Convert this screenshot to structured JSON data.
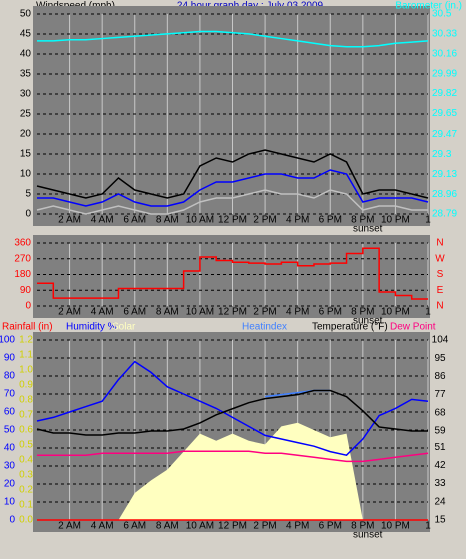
{
  "chart_data": [
    {
      "type": "line",
      "title": "24 hour graph day : July 03 2009",
      "y_label": "Windspeed (mph)",
      "x": [
        0,
        1,
        2,
        3,
        4,
        5,
        6,
        7,
        8,
        9,
        10,
        11,
        12,
        13,
        14,
        15,
        16,
        17,
        18,
        19,
        20,
        21,
        22,
        23,
        24
      ],
      "xlim": [
        0,
        24
      ],
      "xticks": [
        {
          "value": 2,
          "label": "2 AM"
        },
        {
          "value": 4,
          "label": "4 AM"
        },
        {
          "value": 6,
          "label": "6 AM"
        },
        {
          "value": 8,
          "label": "8 AM"
        },
        {
          "value": 10,
          "label": "10 AM"
        },
        {
          "value": 12,
          "label": "12 PM"
        },
        {
          "value": 14,
          "label": "2 PM"
        },
        {
          "value": 16,
          "label": "4 PM"
        },
        {
          "value": 18,
          "label": "6 PM"
        },
        {
          "value": 20,
          "label": "8 PM"
        },
        {
          "value": 22,
          "label": "10 PM"
        },
        {
          "value": 24,
          "label": "1"
        }
      ],
      "annotation": {
        "x": 20.3,
        "label": "sunset"
      },
      "ylim": [
        0,
        50
      ],
      "yticks": [
        0,
        5,
        10,
        15,
        20,
        25,
        30,
        35,
        40,
        45,
        50
      ],
      "y2lim": [
        28.79,
        30.5
      ],
      "y2ticks": [
        28.79,
        28.96,
        29.13,
        29.3,
        29.47,
        29.65,
        29.82,
        29.99,
        30.16,
        30.33,
        30.5
      ],
      "grid": true,
      "series": [
        {
          "color": "#000000",
          "values": [
            7,
            6,
            5,
            4,
            5,
            9,
            6,
            5,
            4,
            5,
            12,
            14,
            13,
            15,
            16,
            15,
            14,
            13,
            15,
            13,
            5,
            6,
            6,
            5,
            4
          ]
        },
        {
          "color": "#c0c0c0",
          "values": [
            1,
            2,
            1,
            0,
            1,
            2,
            1,
            0,
            0,
            1,
            3,
            4,
            4,
            5,
            6,
            5,
            5,
            4,
            6,
            5,
            1,
            2,
            2,
            1,
            1
          ]
        },
        {
          "color": "#0000ff",
          "values": [
            4,
            4,
            3,
            2,
            3,
            5,
            3,
            2,
            2,
            3,
            6,
            8,
            8,
            9,
            10,
            10,
            9,
            9,
            11,
            10,
            3,
            4,
            4,
            4,
            3
          ]
        },
        {
          "name": "Barometer (in.)",
          "color": "#00ffff",
          "axis": "y2",
          "values": [
            30.27,
            30.27,
            30.28,
            30.28,
            30.29,
            30.3,
            30.31,
            30.32,
            30.33,
            30.34,
            30.35,
            30.35,
            30.34,
            30.33,
            30.31,
            30.29,
            30.27,
            30.25,
            30.23,
            30.22,
            30.22,
            30.23,
            30.25,
            30.26,
            30.27
          ]
        }
      ]
    },
    {
      "type": "line",
      "x": [
        0,
        1,
        2,
        3,
        4,
        5,
        6,
        7,
        8,
        9,
        10,
        11,
        12,
        13,
        14,
        15,
        16,
        17,
        18,
        19,
        20,
        21,
        22,
        23,
        24
      ],
      "xlim": [
        0,
        24
      ],
      "xticks": [
        {
          "value": 2,
          "label": "2 AM"
        },
        {
          "value": 4,
          "label": "4 AM"
        },
        {
          "value": 6,
          "label": "6 AM"
        },
        {
          "value": 8,
          "label": "8 AM"
        },
        {
          "value": 10,
          "label": "10 AM"
        },
        {
          "value": 12,
          "label": "12 PM"
        },
        {
          "value": 14,
          "label": "2 PM"
        },
        {
          "value": 16,
          "label": "4 PM"
        },
        {
          "value": 18,
          "label": "6 PM"
        },
        {
          "value": 20,
          "label": "8 PM"
        },
        {
          "value": 22,
          "label": "10 PM"
        },
        {
          "value": 24,
          "label": "1"
        }
      ],
      "annotation": {
        "x": 20.3,
        "label": "sunset"
      },
      "ylim": [
        0,
        360
      ],
      "yticks": [
        0,
        90,
        180,
        270,
        360
      ],
      "y2lim": [
        0,
        360
      ],
      "y2ticks": [
        {
          "value": 0,
          "label": "N"
        },
        {
          "value": 90,
          "label": "E"
        },
        {
          "value": 180,
          "label": "S"
        },
        {
          "value": 270,
          "label": "W"
        },
        {
          "value": 360,
          "label": "N"
        }
      ],
      "grid": true,
      "series": [
        {
          "color": "#ff0000",
          "step": true,
          "values": [
            130,
            45,
            45,
            45,
            45,
            100,
            100,
            100,
            100,
            200,
            280,
            260,
            250,
            245,
            240,
            250,
            230,
            240,
            245,
            300,
            330,
            80,
            60,
            40,
            40
          ]
        }
      ]
    },
    {
      "type": "line",
      "x": [
        0,
        1,
        2,
        3,
        4,
        5,
        6,
        7,
        8,
        9,
        10,
        11,
        12,
        13,
        14,
        15,
        16,
        17,
        18,
        19,
        20,
        21,
        22,
        23,
        24
      ],
      "xlim": [
        0,
        24
      ],
      "xticks": [
        {
          "value": 2,
          "label": "2 AM"
        },
        {
          "value": 4,
          "label": "4 AM"
        },
        {
          "value": 6,
          "label": "6 AM"
        },
        {
          "value": 8,
          "label": "8 AM"
        },
        {
          "value": 10,
          "label": "10 AM"
        },
        {
          "value": 12,
          "label": "12 PM"
        },
        {
          "value": 14,
          "label": "2 PM"
        },
        {
          "value": 16,
          "label": "4 PM"
        },
        {
          "value": 18,
          "label": "6 PM"
        },
        {
          "value": 20,
          "label": "8 PM"
        },
        {
          "value": 22,
          "label": "10 PM"
        },
        {
          "value": 24,
          "label": "1"
        }
      ],
      "annotation": {
        "x": 20.3,
        "label": "sunset"
      },
      "ylim": [
        0,
        100
      ],
      "yticks": [
        0,
        10,
        20,
        30,
        40,
        50,
        60,
        70,
        80,
        90,
        100
      ],
      "y2lim": [
        15,
        104
      ],
      "y2ticks": [
        15,
        24,
        33,
        42,
        51,
        59,
        68,
        77,
        86,
        95,
        104
      ],
      "y3lim": [
        0,
        1.2
      ],
      "y3ticks": [
        {
          "value": 0,
          "label": "0.0"
        },
        0.1,
        0.2,
        0.3,
        0.4,
        0.5,
        0.6,
        0.7,
        0.8,
        0.9,
        {
          "value": 1,
          "label": "1.0"
        },
        1.1,
        1.2
      ],
      "grid": true,
      "series": [
        {
          "name": "Rainfall (in)",
          "color": "#ff0000",
          "axis": "y3",
          "values": [
            0,
            0,
            0,
            0,
            0,
            0,
            0,
            0,
            0,
            0,
            0,
            0,
            0,
            0,
            0,
            0,
            0,
            0,
            0,
            0,
            0,
            0,
            0,
            0,
            0
          ]
        },
        {
          "name": "Humidity %",
          "color": "#0000ff",
          "values": [
            55,
            57,
            60,
            63,
            66,
            78,
            88,
            82,
            74,
            70,
            66,
            62,
            57,
            52,
            47,
            45,
            43,
            41,
            38,
            36,
            45,
            58,
            62,
            67,
            66
          ]
        },
        {
          "name": "Solar",
          "color": "#ffffc0",
          "fill": true,
          "values": [
            0,
            0,
            0,
            0,
            0,
            0,
            15,
            22,
            28,
            38,
            48,
            44,
            48,
            44,
            42,
            52,
            54,
            50,
            46,
            48,
            0,
            0,
            0,
            0,
            0
          ]
        },
        {
          "name": "Heatindex",
          "color": "#4080ff",
          "axis": "y2",
          "values": [
            null,
            null,
            null,
            null,
            null,
            null,
            null,
            null,
            null,
            null,
            null,
            null,
            null,
            null,
            76,
            77,
            78,
            79,
            79,
            null,
            null,
            null,
            null,
            null,
            null
          ]
        },
        {
          "name": "Temperature (°F)",
          "color": "#000000",
          "axis": "y2",
          "values": [
            60,
            58,
            58,
            57,
            57,
            58,
            58,
            59,
            59,
            60,
            63,
            67,
            70,
            73,
            75,
            76,
            77,
            79,
            79,
            76,
            69,
            61,
            60,
            59,
            59
          ]
        },
        {
          "name": "Dew Point",
          "color": "#ff0080",
          "axis": "y2",
          "values": [
            47,
            47,
            47,
            47,
            48,
            48,
            48,
            48,
            48,
            49,
            49,
            49,
            49,
            49,
            48,
            48,
            47,
            46,
            45,
            44,
            44,
            45,
            46,
            47,
            48
          ]
        }
      ]
    }
  ]
}
